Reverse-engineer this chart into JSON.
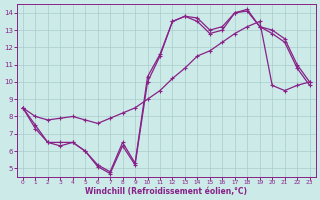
{
  "xlabel": "Windchill (Refroidissement éolien,°C)",
  "xlim": [
    -0.5,
    23.5
  ],
  "ylim": [
    4.5,
    14.5
  ],
  "xticks": [
    0,
    1,
    2,
    3,
    4,
    5,
    6,
    7,
    8,
    9,
    10,
    11,
    12,
    13,
    14,
    15,
    16,
    17,
    18,
    19,
    20,
    21,
    22,
    23
  ],
  "yticks": [
    5,
    6,
    7,
    8,
    9,
    10,
    11,
    12,
    13,
    14
  ],
  "bg_color": "#cceae7",
  "line_color": "#882288",
  "grid_color": "#aacccc",
  "line1_x": [
    0,
    1,
    2,
    3,
    4,
    5,
    6,
    7,
    8,
    9,
    10,
    11,
    12,
    13,
    14,
    15,
    16,
    17,
    18,
    19,
    20,
    21,
    22,
    23
  ],
  "line1_y": [
    8.5,
    7.5,
    6.5,
    6.5,
    6.5,
    6.0,
    5.2,
    4.8,
    6.5,
    5.3,
    10.3,
    11.6,
    13.5,
    13.8,
    13.7,
    13.0,
    13.2,
    14.0,
    14.2,
    13.2,
    13.0,
    12.5,
    11.0,
    10.0
  ],
  "line2_x": [
    0,
    1,
    2,
    3,
    4,
    5,
    6,
    7,
    8,
    9,
    10,
    11,
    12,
    13,
    14,
    15,
    16,
    17,
    18,
    19,
    20,
    21,
    22,
    23
  ],
  "line2_y": [
    8.5,
    8.0,
    7.8,
    7.9,
    8.0,
    7.8,
    7.6,
    7.9,
    8.2,
    8.5,
    9.0,
    9.5,
    10.2,
    10.8,
    11.5,
    11.8,
    12.3,
    12.8,
    13.2,
    13.5,
    9.8,
    9.5,
    9.8,
    10.0
  ],
  "line3_x": [
    0,
    1,
    2,
    3,
    4,
    5,
    6,
    7,
    8,
    9,
    10,
    11,
    12,
    13,
    14,
    15,
    16,
    17,
    18,
    19,
    20,
    21,
    22,
    23
  ],
  "line3_y": [
    8.5,
    7.3,
    6.5,
    6.3,
    6.5,
    6.0,
    5.1,
    4.7,
    6.3,
    5.2,
    10.0,
    11.5,
    13.5,
    13.8,
    13.5,
    12.8,
    13.0,
    14.0,
    14.1,
    13.2,
    12.8,
    12.3,
    10.8,
    9.8
  ]
}
